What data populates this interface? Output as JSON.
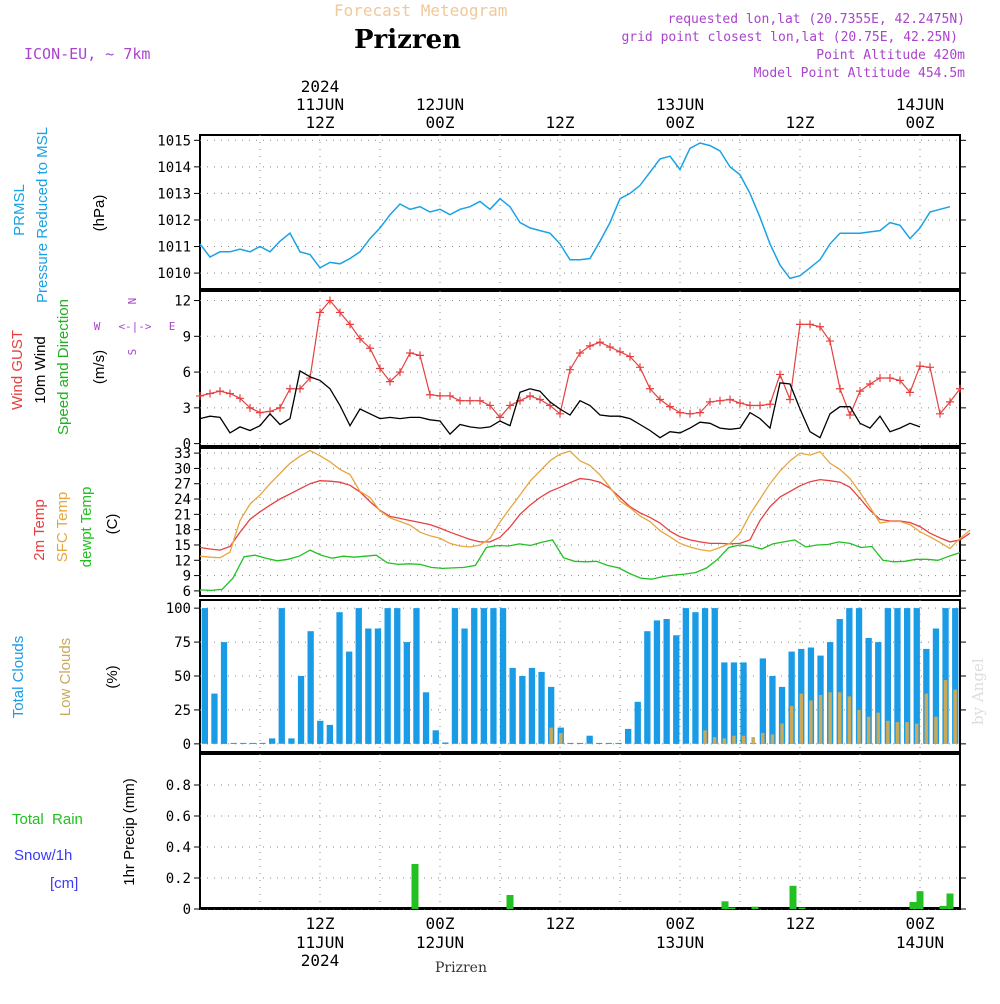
{
  "header": {
    "title_faded": "Forecast Meteogram",
    "location": "Prizren",
    "model": "ICON-EU, ~ 7km",
    "requested": "requested lon,lat (20.7355E, 42.2475N)",
    "grid_point": "grid point closest lon,lat (20.75E, 42.25N)",
    "point_alt": "Point Altitude 420m",
    "model_alt": "Model Point Altitude 454.5m",
    "credit": "by Angel",
    "bottom_label": "Prizren"
  },
  "colors": {
    "pressure": "#1aa2e6",
    "gust": "#e64040",
    "wind10": "#000000",
    "dir_label": "#22b022",
    "temp2m": "#e64040",
    "sfc": "#e6a640",
    "dew": "#22c022",
    "total_clouds": "#1a9be6",
    "low_clouds": "#c8aa5a",
    "precip": "#22c022",
    "snow_label": "#3a3aff",
    "info": "#aa44cc",
    "title_faded": "#f0c89a"
  },
  "time_axis": {
    "top": [
      {
        "line1": "2024",
        "line2": "11JUN",
        "line3": "12Z",
        "h": 12
      },
      {
        "line1": "",
        "line2": "12JUN",
        "line3": "00Z",
        "h": 24
      },
      {
        "line1": "",
        "line2": "",
        "line3": "12Z",
        "h": 36
      },
      {
        "line1": "",
        "line2": "13JUN",
        "line3": "00Z",
        "h": 48
      },
      {
        "line1": "",
        "line2": "",
        "line3": "12Z",
        "h": 60
      },
      {
        "line1": "",
        "line2": "14JUN",
        "line3": "00Z",
        "h": 72
      }
    ],
    "bottom": [
      {
        "line1": "12Z",
        "line2": "11JUN",
        "line3": "2024",
        "h": 12
      },
      {
        "line1": "00Z",
        "line2": "12JUN",
        "line3": "",
        "h": 24
      },
      {
        "line1": "12Z",
        "line2": "",
        "line3": "",
        "h": 36
      },
      {
        "line1": "00Z",
        "line2": "13JUN",
        "line3": "",
        "h": 48
      },
      {
        "line1": "12Z",
        "line2": "",
        "line3": "",
        "h": 60
      },
      {
        "line1": "00Z",
        "line2": "14JUN",
        "line3": "",
        "h": 72
      }
    ]
  },
  "chart_data": [
    {
      "type": "line",
      "id": "pressure",
      "title": "PRMSL Pressure Reduced to MSL",
      "label_lines": [
        "PRMSL",
        "Pressure Reduced to MSL"
      ],
      "ylabel": "(hPa)",
      "ylim": [
        1009.4,
        1015.2
      ],
      "yticks": [
        1010,
        1011,
        1012,
        1013,
        1014,
        1015
      ],
      "x_hours": [
        0,
        1,
        2,
        3,
        4,
        5,
        6,
        7,
        8,
        9,
        10,
        11,
        12,
        13,
        14,
        15,
        16,
        17,
        18,
        19,
        20,
        21,
        22,
        23,
        24,
        25,
        26,
        27,
        28,
        29,
        30,
        31,
        32,
        33,
        34,
        35,
        36,
        37,
        38,
        39,
        40,
        41,
        42,
        43,
        44,
        45,
        46,
        47,
        48,
        49,
        50,
        51,
        52,
        53,
        54,
        55,
        56,
        57,
        58,
        59,
        60,
        61,
        62,
        63,
        64,
        65,
        66,
        67,
        68,
        69,
        70,
        71,
        72,
        73,
        74,
        75
      ],
      "series": [
        {
          "values": [
            1011.1,
            1010.6,
            1010.8,
            1010.8,
            1010.9,
            1010.8,
            1011.0,
            1010.8,
            1011.2,
            1011.5,
            1010.8,
            1010.7,
            1010.2,
            1010.4,
            1010.35,
            1010.55,
            1010.8,
            1011.3,
            1011.7,
            1012.2,
            1012.6,
            1012.4,
            1012.5,
            1012.3,
            1012.4,
            1012.2,
            1012.4,
            1012.5,
            1012.7,
            1012.4,
            1012.8,
            1012.5,
            1011.9,
            1011.7,
            1011.6,
            1011.5,
            1011.1,
            1010.5,
            1010.5,
            1010.55,
            1011.2,
            1011.9,
            1012.8,
            1013.0,
            1013.3,
            1013.8,
            1014.3,
            1014.4,
            1013.9,
            1014.7,
            1014.9,
            1014.8,
            1014.6,
            1014.0,
            1013.7,
            1013.0,
            1012.1,
            1011.1,
            1010.3,
            1009.8,
            1009.9,
            1010.2,
            1010.5,
            1011.1,
            1011.5,
            1011.5,
            1011.5,
            1011.55,
            1011.6,
            1011.9,
            1011.8,
            1011.3,
            1011.7,
            1012.3,
            1012.4,
            1012.5
          ]
        }
      ]
    },
    {
      "type": "line",
      "id": "wind",
      "title": "Wind GUST / 10m Wind Speed and Direction",
      "label_lines": [
        "Wind GUST",
        "10m Wind",
        "Speed and Direction"
      ],
      "ylabel": "(m/s)",
      "compass": {
        "n": "N",
        "s": "S",
        "w": "W",
        "e": "E",
        "arrow": "<-|->"
      },
      "ylim": [
        -0.2,
        12.8
      ],
      "yticks": [
        0,
        3,
        6,
        9,
        12
      ],
      "series": [
        {
          "name": "Wind GUST",
          "values": [
            4.0,
            4.2,
            4.4,
            4.2,
            3.8,
            3.0,
            2.6,
            2.7,
            3.0,
            4.6,
            4.6,
            5.5,
            11.0,
            12.0,
            11.0,
            10.0,
            8.8,
            8.0,
            6.3,
            5.2,
            6.0,
            7.6,
            7.4,
            4.1,
            4.0,
            4.0,
            3.6,
            3.6,
            3.6,
            3.2,
            2.2,
            3.2,
            3.6,
            4.0,
            3.7,
            3.2,
            2.5,
            6.2,
            7.6,
            8.2,
            8.5,
            8.1,
            7.7,
            7.3,
            6.4,
            4.6,
            3.7,
            3.1,
            2.6,
            2.5,
            2.6,
            3.5,
            3.6,
            3.7,
            3.4,
            3.2,
            3.2,
            3.3,
            5.8,
            3.7,
            10.0,
            10.0,
            9.8,
            8.6,
            4.6,
            2.4,
            4.4,
            5.0,
            5.5,
            5.5,
            5.3,
            4.3,
            6.5,
            6.4,
            2.5,
            3.5,
            4.6
          ]
        },
        {
          "name": "10m Wind",
          "values": [
            2.1,
            2.3,
            2.2,
            0.9,
            1.4,
            1.1,
            1.5,
            2.5,
            1.6,
            2.1,
            6.1,
            5.6,
            5.3,
            4.6,
            3.2,
            1.5,
            2.9,
            2.5,
            2.1,
            2.2,
            2.1,
            2.2,
            2.2,
            2.0,
            1.9,
            0.8,
            1.6,
            1.4,
            1.3,
            1.4,
            1.9,
            1.5,
            4.3,
            4.6,
            4.4,
            3.5,
            2.9,
            2.4,
            3.6,
            3.2,
            2.4,
            2.3,
            2.3,
            2.1,
            1.6,
            1.1,
            0.5,
            1.0,
            0.9,
            1.3,
            1.8,
            1.7,
            1.3,
            1.2,
            1.3,
            2.6,
            2.1,
            1.3,
            5.1,
            5.0,
            2.9,
            1.0,
            0.5,
            2.5,
            3.1,
            3.1,
            1.7,
            1.3,
            2.3,
            1.0,
            1.3,
            1.7,
            1.4
          ]
        }
      ]
    },
    {
      "type": "line",
      "id": "temperature",
      "title": "2m Temp / SFC Temp / dewpt Temp",
      "label_lines": [
        "2m Temp",
        "SFC Temp",
        "dewpt Temp"
      ],
      "ylabel": "(C)",
      "ylim": [
        5,
        34
      ],
      "yticks": [
        6,
        9,
        12,
        15,
        18,
        21,
        24,
        27,
        30,
        33
      ],
      "series": [
        {
          "name": "2m Temp",
          "values": [
            14.5,
            14.2,
            14.0,
            14.7,
            17.5,
            20.0,
            21.5,
            22.8,
            24.0,
            25.0,
            26.0,
            27.0,
            27.6,
            27.5,
            27.3,
            26.7,
            25.4,
            23.5,
            21.8,
            20.6,
            20.2,
            19.8,
            19.4,
            19.0,
            18.3,
            17.5,
            16.8,
            16.1,
            15.6,
            15.6,
            16.5,
            18.5,
            21.0,
            22.8,
            24.3,
            25.5,
            26.3,
            27.2,
            28.0,
            27.8,
            27.3,
            26.1,
            24.3,
            22.5,
            21.3,
            20.4,
            19.3,
            17.7,
            16.6,
            16.0,
            15.6,
            15.3,
            15.3,
            15.2,
            15.3,
            16.0,
            19.8,
            22.5,
            24.4,
            25.5,
            26.6,
            27.4,
            27.8,
            27.6,
            27.3,
            26.3,
            24.1,
            21.8,
            20.0,
            19.7,
            19.7,
            19.4,
            18.6,
            17.3,
            16.4,
            15.6,
            16.0,
            17.3
          ]
        },
        {
          "name": "SFC Temp",
          "values": [
            12.8,
            12.6,
            12.5,
            13.6,
            19.8,
            23.0,
            24.8,
            27.0,
            29.0,
            31.0,
            32.4,
            33.5,
            32.5,
            31.3,
            29.8,
            28.8,
            25.5,
            24.3,
            21.7,
            20.3,
            19.6,
            18.9,
            17.5,
            16.8,
            16.3,
            15.3,
            14.8,
            14.6,
            15.0,
            16.3,
            19.5,
            22.2,
            24.8,
            27.5,
            29.5,
            31.5,
            32.8,
            33.4,
            31.5,
            30.6,
            28.7,
            26.3,
            23.6,
            22.3,
            20.7,
            19.6,
            17.8,
            16.6,
            15.3,
            14.6,
            14.1,
            13.8,
            14.5,
            15.3,
            17.3,
            21.0,
            24.0,
            27.0,
            29.5,
            31.5,
            33.0,
            32.6,
            33.3,
            31.0,
            29.8,
            28.0,
            25.3,
            22.4,
            19.3,
            19.6,
            19.6,
            19.0,
            17.6,
            16.6,
            15.5,
            14.3,
            16.3,
            17.9
          ]
        },
        {
          "name": "dewpt Temp",
          "values": [
            6.2,
            6.1,
            6.3,
            8.5,
            12.7,
            13.0,
            12.4,
            11.9,
            12.2,
            12.8,
            14.0,
            13.0,
            12.4,
            12.8,
            12.6,
            12.8,
            13.0,
            11.5,
            11.2,
            11.3,
            11.2,
            10.6,
            10.4,
            10.5,
            10.6,
            11.0,
            14.5,
            14.9,
            14.8,
            15.2,
            14.9,
            15.5,
            16.0,
            12.5,
            11.8,
            11.7,
            11.8,
            11.0,
            10.5,
            9.4,
            8.5,
            8.3,
            8.8,
            9.1,
            9.3,
            9.6,
            10.5,
            12.2,
            14.5,
            15.0,
            14.8,
            14.2,
            15.2,
            15.6,
            16.0,
            14.6,
            15.0,
            15.1,
            15.6,
            15.3,
            14.5,
            14.7,
            12.0,
            11.7,
            11.8,
            12.2,
            12.2,
            12.0,
            12.8,
            13.5
          ]
        }
      ]
    },
    {
      "type": "bar",
      "id": "clouds",
      "title": "Total Clouds / Low Clouds",
      "label_lines": [
        "Total Clouds",
        "Low Clouds"
      ],
      "ylabel": "(%)",
      "ylim": [
        -6,
        106
      ],
      "yticks": [
        0,
        25,
        50,
        75,
        100
      ],
      "series": [
        {
          "name": "Total Clouds",
          "values": [
            100,
            37,
            75,
            0,
            0,
            0,
            0,
            4,
            100,
            4,
            50,
            83,
            17,
            14,
            97,
            68,
            100,
            85,
            85,
            100,
            100,
            75,
            100,
            38,
            10,
            1,
            100,
            85,
            100,
            100,
            100,
            100,
            56,
            50,
            56,
            53,
            42,
            12,
            0,
            0,
            6,
            0,
            0,
            0,
            11,
            31,
            83,
            91,
            92,
            80,
            100,
            97,
            100,
            100,
            60,
            60,
            60,
            0,
            63,
            50,
            42,
            68,
            70,
            71,
            65,
            75,
            92,
            100,
            100,
            78,
            75,
            100,
            100,
            100,
            100,
            70,
            85,
            100,
            100
          ]
        },
        {
          "name": "Low Clouds",
          "values": [
            0,
            0,
            0,
            0,
            0,
            0,
            0,
            0,
            0,
            0,
            0,
            0,
            0,
            0,
            0,
            0,
            0,
            0,
            0,
            0,
            0,
            0,
            0,
            0,
            0,
            0,
            0,
            0,
            0,
            0,
            0,
            0,
            0,
            0,
            0,
            0,
            12,
            8,
            0,
            0,
            0,
            0,
            0,
            0,
            0,
            0,
            0,
            0,
            0,
            0,
            0,
            0,
            10,
            5,
            4,
            6,
            6,
            5,
            8,
            7,
            15,
            28,
            37,
            32,
            36,
            38,
            38,
            35,
            25,
            20,
            23,
            17,
            16,
            16,
            15,
            37,
            20,
            47,
            40
          ]
        }
      ]
    },
    {
      "type": "bar",
      "id": "precip",
      "title": "1hr Precip (mm)",
      "label_lines": [
        "Total  Rain",
        "Snow/1h",
        "[cm]"
      ],
      "ylabel": "1hr Precip (mm)",
      "ylim": [
        0,
        1.0
      ],
      "yticks": [
        0,
        0.2,
        0.4,
        0.6,
        0.8
      ],
      "ytick_labels": [
        "0",
        "0.2",
        "0.4",
        "0.6",
        "0.8"
      ],
      "series": [
        {
          "name": "Total",
          "points": [
            [
              21.5,
              0.29
            ],
            [
              31.0,
              0.09
            ],
            [
              52.5,
              0.05
            ],
            [
              53.2,
              0.01
            ],
            [
              55.5,
              0.015
            ],
            [
              59.3,
              0.15
            ],
            [
              60.2,
              0.01
            ],
            [
              71.3,
              0.045
            ],
            [
              72.0,
              0.115
            ],
            [
              74.3,
              0.02
            ],
            [
              75.0,
              0.1
            ]
          ]
        }
      ]
    }
  ]
}
